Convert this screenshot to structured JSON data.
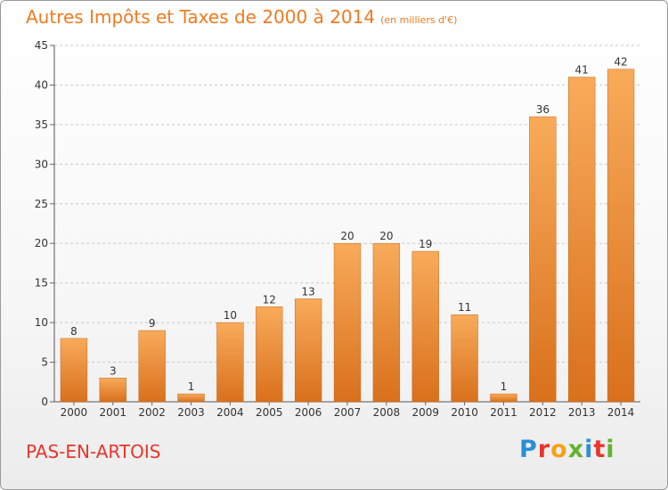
{
  "title": "Autres Impôts et Taxes de 2000 à 2014",
  "unit": "(en milliers d'€)",
  "commune": "PAS-EN-ARTOIS",
  "brand": "Proxiti",
  "colors": {
    "title": "#f07a20",
    "commune": "#e8362d",
    "bar_light": "#f8ab5a",
    "bar_dark": "#d9701c",
    "grid": "#c8c8c8"
  },
  "chart_data": {
    "type": "bar",
    "title": "Autres Impôts et Taxes de 2000 à 2014",
    "categories": [
      "2000",
      "2001",
      "2002",
      "2003",
      "2004",
      "2005",
      "2006",
      "2007",
      "2008",
      "2009",
      "2010",
      "2011",
      "2012",
      "2013",
      "2014"
    ],
    "values": [
      8,
      3,
      9,
      1,
      10,
      12,
      13,
      20,
      20,
      19,
      11,
      1,
      36,
      41,
      42
    ],
    "ylim": [
      0,
      45
    ],
    "yticks": [
      0,
      5,
      10,
      15,
      20,
      25,
      30,
      35,
      40,
      45
    ],
    "grid": true,
    "data_labels": true
  }
}
